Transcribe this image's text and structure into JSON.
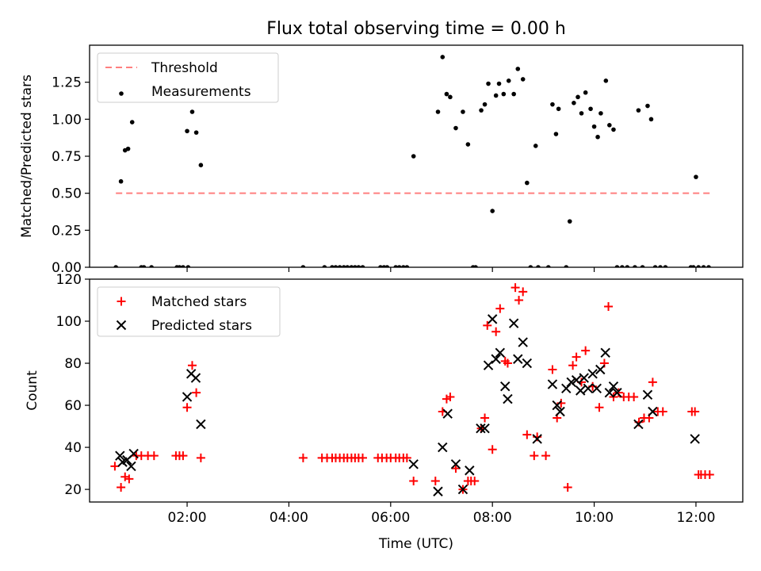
{
  "figure": {
    "title": "Flux total observing time = 0.00 h",
    "xlabel": "Time (UTC)"
  },
  "colors": {
    "threshold": "#ff7f7f",
    "measurements": "#000000",
    "matched": "#ff0000",
    "predicted": "#000000"
  },
  "chart_data": [
    {
      "type": "scatter",
      "title": "Flux total observing time = 0.00 h",
      "xlabel": "",
      "ylabel": "Matched/Predicted stars",
      "xlim": [
        0.083,
        12.92
      ],
      "ylim": [
        0,
        1.5
      ],
      "yticks": [
        0.0,
        0.25,
        0.5,
        0.75,
        1.0,
        1.25
      ],
      "ytick_labels": [
        "0.00",
        "0.25",
        "0.50",
        "0.75",
        "1.00",
        "1.25"
      ],
      "grid": false,
      "legend": "top-left",
      "threshold": {
        "name": "Threshold",
        "y": 0.5,
        "x": [
          0.6,
          12.3
        ]
      },
      "series": [
        {
          "name": "Measurements",
          "marker": "dot",
          "x": [
            0.6,
            0.7,
            0.78,
            0.84,
            0.92,
            1.1,
            1.15,
            1.3,
            1.8,
            1.85,
            1.92,
            2.0,
            2.02,
            2.1,
            2.18,
            2.27,
            4.28,
            4.7,
            4.85,
            4.92,
            5.0,
            5.08,
            5.15,
            5.23,
            5.3,
            5.37,
            5.45,
            5.8,
            5.87,
            5.93,
            6.1,
            6.17,
            6.25,
            6.32,
            6.45,
            6.93,
            7.02,
            7.1,
            7.17,
            7.28,
            7.42,
            7.52,
            7.62,
            7.67,
            7.78,
            7.85,
            7.92,
            8.0,
            8.07,
            8.13,
            8.22,
            8.32,
            8.42,
            8.5,
            8.6,
            8.68,
            8.75,
            8.85,
            8.9,
            9.1,
            9.18,
            9.25,
            9.3,
            9.45,
            9.52,
            9.6,
            9.68,
            9.75,
            9.83,
            9.93,
            10.0,
            10.07,
            10.13,
            10.23,
            10.3,
            10.38,
            10.45,
            10.55,
            10.65,
            10.8,
            10.87,
            10.95,
            11.05,
            11.12,
            11.2,
            11.3,
            11.4,
            11.9,
            11.95,
            12.0,
            12.05,
            12.15,
            12.25
          ],
          "y": [
            0,
            0.58,
            0.79,
            0.8,
            0.98,
            0,
            0,
            0,
            0,
            0,
            0,
            0.92,
            0,
            1.05,
            0.91,
            0.69,
            0,
            0,
            0,
            0,
            0,
            0,
            0,
            0,
            0,
            0,
            0,
            0,
            0,
            0,
            0,
            0,
            0,
            0,
            0.75,
            1.05,
            1.42,
            1.17,
            1.15,
            0.94,
            1.05,
            0.83,
            0,
            0,
            1.06,
            1.1,
            1.24,
            0.38,
            1.16,
            1.24,
            1.17,
            1.26,
            1.17,
            1.34,
            1.27,
            0.57,
            0,
            0.82,
            0,
            0,
            1.1,
            0.9,
            1.07,
            0,
            0.31,
            1.11,
            1.15,
            1.04,
            1.18,
            1.07,
            0.95,
            0.88,
            1.04,
            1.26,
            0.96,
            0.93,
            0,
            0,
            0,
            0,
            1.06,
            0,
            1.09,
            1.0,
            0,
            0,
            0,
            0,
            0,
            0.61,
            0,
            0,
            0
          ]
        }
      ]
    },
    {
      "type": "scatter",
      "xlabel": "Time (UTC)",
      "ylabel": "Count",
      "xlim": [
        0.083,
        12.92
      ],
      "ylim": [
        14,
        120
      ],
      "xticks": [
        2,
        4,
        6,
        8,
        10,
        12
      ],
      "xtick_labels": [
        "02:00",
        "04:00",
        "06:00",
        "08:00",
        "10:00",
        "12:00"
      ],
      "yticks": [
        20,
        40,
        60,
        80,
        100,
        120
      ],
      "ytick_labels": [
        "20",
        "40",
        "60",
        "80",
        "100",
        "120"
      ],
      "grid": false,
      "legend": "top-left",
      "series": [
        {
          "name": "Matched stars",
          "marker": "plus",
          "x": [
            0.58,
            0.7,
            0.78,
            0.86,
            1.0,
            1.1,
            1.23,
            1.35,
            1.78,
            1.85,
            1.92,
            2.0,
            2.1,
            2.18,
            2.27,
            4.28,
            4.65,
            4.75,
            4.85,
            4.92,
            5.0,
            5.08,
            5.15,
            5.23,
            5.3,
            5.37,
            5.45,
            5.75,
            5.83,
            5.92,
            6.0,
            6.1,
            6.17,
            6.25,
            6.32,
            6.45,
            6.88,
            7.02,
            7.1,
            7.17,
            7.28,
            7.42,
            7.52,
            7.58,
            7.65,
            7.78,
            7.85,
            7.9,
            8.0,
            8.07,
            8.15,
            8.25,
            8.3,
            8.45,
            8.52,
            8.6,
            8.68,
            8.82,
            8.88,
            9.05,
            9.18,
            9.27,
            9.35,
            9.48,
            9.58,
            9.65,
            9.75,
            9.83,
            9.97,
            10.1,
            10.2,
            10.28,
            10.38,
            10.48,
            10.58,
            10.68,
            10.78,
            10.88,
            10.98,
            11.08,
            11.15,
            11.25,
            11.35,
            11.92,
            11.98,
            12.05,
            12.1,
            12.18,
            12.27
          ],
          "y": [
            31,
            21,
            26,
            25,
            36,
            36,
            36,
            36,
            36,
            36,
            36,
            59,
            79,
            66,
            35,
            35,
            35,
            35,
            35,
            35,
            35,
            35,
            35,
            35,
            35,
            35,
            35,
            35,
            35,
            35,
            35,
            35,
            35,
            35,
            35,
            24,
            24,
            57,
            63,
            64,
            30,
            20,
            24,
            24,
            24,
            49,
            54,
            98,
            39,
            95,
            106,
            81,
            80,
            116,
            110,
            114,
            46,
            36,
            45,
            36,
            77,
            54,
            61,
            21,
            79,
            83,
            71,
            86,
            69,
            59,
            80,
            107,
            64,
            66,
            64,
            64,
            64,
            52,
            54,
            54,
            71,
            57,
            57,
            57,
            57,
            27,
            27,
            27,
            27
          ]
        },
        {
          "name": "Predicted stars",
          "marker": "x",
          "x": [
            0.68,
            0.73,
            0.82,
            0.9,
            0.95,
            2.0,
            2.08,
            2.17,
            2.27,
            6.45,
            6.93,
            7.02,
            7.12,
            7.28,
            7.42,
            7.55,
            7.77,
            7.85,
            7.92,
            8.0,
            8.07,
            8.15,
            8.25,
            8.3,
            8.42,
            8.5,
            8.6,
            8.68,
            8.88,
            9.18,
            9.27,
            9.33,
            9.45,
            9.55,
            9.65,
            9.73,
            9.8,
            9.88,
            9.97,
            10.05,
            10.12,
            10.22,
            10.3,
            10.38,
            10.45,
            10.87,
            11.05,
            11.15,
            11.98
          ],
          "y": [
            36,
            33,
            34,
            31,
            37,
            64,
            75,
            73,
            51,
            32,
            19,
            40,
            56,
            32,
            20,
            29,
            49,
            49,
            79,
            101,
            82,
            85,
            69,
            63,
            99,
            82,
            90,
            80,
            44,
            70,
            60,
            57,
            68,
            71,
            72,
            67,
            73,
            68,
            75,
            68,
            77,
            85,
            66,
            69,
            66,
            51,
            65,
            57,
            44
          ]
        }
      ]
    }
  ]
}
